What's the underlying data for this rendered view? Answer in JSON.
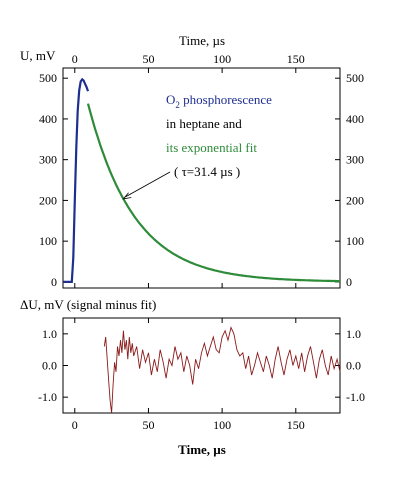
{
  "chart_data": [
    {
      "type": "line",
      "title": "",
      "xlabel": "Time, µs",
      "ylabel": "U, mV",
      "xlim": [
        -8,
        180
      ],
      "ylim": [
        -15,
        525
      ],
      "x_ticks": [
        0,
        50,
        100,
        150
      ],
      "y_ticks": [
        0,
        100,
        200,
        300,
        400,
        500
      ],
      "x_axis_position": "top",
      "ticks_on_right": true,
      "grid": false,
      "series": [
        {
          "name": "O2 phosphorescence in heptane",
          "color": "#1f2f8f",
          "points": [
            [
              -8,
              0
            ],
            [
              -3,
              0
            ],
            [
              -2,
              0
            ],
            [
              -1,
              60
            ],
            [
              0,
              200
            ],
            [
              1,
              330
            ],
            [
              2,
              420
            ],
            [
              3,
              470
            ],
            [
              4,
              492
            ],
            [
              5,
              497
            ],
            [
              6,
              494
            ],
            [
              7,
              486
            ],
            [
              8,
              478
            ],
            [
              9,
              468
            ]
          ]
        },
        {
          "name": "its exponential fit",
          "color": "#2e8b3a",
          "model": {
            "amplitude": 497,
            "t0": 5,
            "tau": 31.4,
            "x_start": 9,
            "x_end": 180
          }
        }
      ],
      "annotations": {
        "line1_prefix": "O",
        "line1_sub": "2",
        "line1_suffix": " phosphorescence",
        "line2": "in heptane and",
        "line3": "its exponential fit",
        "line4": "( τ=31.4 µs )",
        "arrow_target_x": 33
      }
    },
    {
      "type": "line",
      "title": "",
      "ylabel": "ΔU, mV (signal minus fit)",
      "xlabel": "Time, µs",
      "xlim": [
        -8,
        180
      ],
      "ylim": [
        -1.5,
        1.5
      ],
      "x_ticks": [
        0,
        50,
        100,
        150
      ],
      "y_ticks": [
        -1.0,
        0.0,
        1.0
      ],
      "y_tick_labels": [
        "-1.0",
        "0.0",
        "1.0"
      ],
      "ticks_on_right": true,
      "grid": false,
      "series": [
        {
          "name": "residual",
          "color": "#8b1a1a",
          "points": [
            [
              20,
              0.6
            ],
            [
              21,
              0.9
            ],
            [
              22,
              0.2
            ],
            [
              23,
              -0.5
            ],
            [
              24,
              -1.1
            ],
            [
              25,
              -1.5
            ],
            [
              26,
              -0.6
            ],
            [
              27,
              0.1
            ],
            [
              28,
              -0.2
            ],
            [
              29,
              0.6
            ],
            [
              30,
              0.3
            ],
            [
              31,
              0.8
            ],
            [
              32,
              0.4
            ],
            [
              33,
              1.1
            ],
            [
              34,
              0.5
            ],
            [
              35,
              0.8
            ],
            [
              36,
              0.2
            ],
            [
              37,
              0.9
            ],
            [
              38,
              0.4
            ],
            [
              39,
              0.7
            ],
            [
              40,
              0.3
            ],
            [
              42,
              0.6
            ],
            [
              44,
              -0.1
            ],
            [
              46,
              0.5
            ],
            [
              48,
              0.1
            ],
            [
              50,
              0.4
            ],
            [
              52,
              -0.3
            ],
            [
              54,
              0.2
            ],
            [
              56,
              -0.2
            ],
            [
              58,
              0.5
            ],
            [
              60,
              0.1
            ],
            [
              62,
              -0.4
            ],
            [
              64,
              0.2
            ],
            [
              66,
              0.0
            ],
            [
              68,
              0.6
            ],
            [
              70,
              0.2
            ],
            [
              72,
              0.4
            ],
            [
              74,
              -0.2
            ],
            [
              76,
              0.3
            ],
            [
              78,
              0.0
            ],
            [
              80,
              -0.6
            ],
            [
              82,
              0.2
            ],
            [
              84,
              -0.1
            ],
            [
              86,
              0.4
            ],
            [
              88,
              0.7
            ],
            [
              90,
              0.3
            ],
            [
              92,
              0.6
            ],
            [
              94,
              0.9
            ],
            [
              96,
              0.5
            ],
            [
              98,
              0.4
            ],
            [
              100,
              0.9
            ],
            [
              102,
              1.1
            ],
            [
              104,
              0.8
            ],
            [
              106,
              1.2
            ],
            [
              108,
              1.0
            ],
            [
              110,
              0.5
            ],
            [
              112,
              0.3
            ],
            [
              114,
              0.4
            ],
            [
              116,
              -0.1
            ],
            [
              118,
              0.3
            ],
            [
              120,
              -0.3
            ],
            [
              122,
              0.0
            ],
            [
              124,
              0.4
            ],
            [
              126,
              0.1
            ],
            [
              128,
              -0.2
            ],
            [
              130,
              0.3
            ],
            [
              132,
              0.0
            ],
            [
              134,
              -0.4
            ],
            [
              136,
              0.2
            ],
            [
              138,
              0.6
            ],
            [
              140,
              0.1
            ],
            [
              142,
              -0.3
            ],
            [
              144,
              0.2
            ],
            [
              146,
              0.5
            ],
            [
              148,
              0.0
            ],
            [
              150,
              0.3
            ],
            [
              152,
              -0.1
            ],
            [
              154,
              0.4
            ],
            [
              156,
              -0.2
            ],
            [
              158,
              0.3
            ],
            [
              160,
              0.6
            ],
            [
              162,
              0.1
            ],
            [
              164,
              -0.4
            ],
            [
              166,
              0.2
            ],
            [
              168,
              0.5
            ],
            [
              170,
              0.0
            ],
            [
              172,
              -0.3
            ],
            [
              174,
              0.3
            ],
            [
              176,
              -0.1
            ],
            [
              178,
              0.2
            ],
            [
              180,
              -0.2
            ]
          ]
        }
      ]
    }
  ]
}
